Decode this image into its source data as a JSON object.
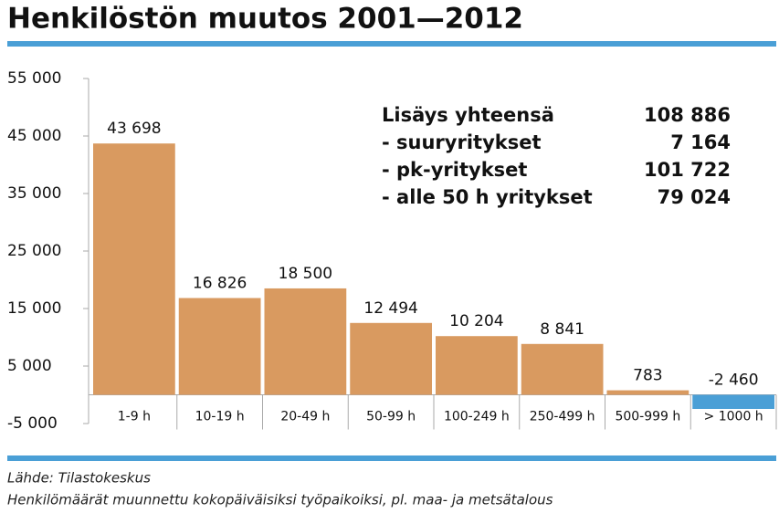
{
  "chart_data": {
    "type": "bar",
    "title": "Henkilöstön muutos 2001—2012",
    "categories": [
      "1-9 h",
      "10-19 h",
      "20-49 h",
      "50-99 h",
      "100-249 h",
      "250-499 h",
      "500-999 h",
      "> 1000 h"
    ],
    "values": [
      43698,
      16826,
      18500,
      12494,
      10204,
      8841,
      783,
      -2460
    ],
    "value_labels": [
      "43 698",
      "16 826",
      "18 500",
      "12 494",
      "10 204",
      "8 841",
      "783",
      "-2 460"
    ],
    "color": "#d99a60",
    "negative_color": "#4a9fd6",
    "ylim": [
      -5000,
      55000
    ],
    "yticks": [
      {
        "value": -5000,
        "label": "-5 000"
      },
      {
        "value": 5000,
        "label": "5 000"
      },
      {
        "value": 15000,
        "label": "15 000"
      },
      {
        "value": 25000,
        "label": "25 000"
      },
      {
        "value": 35000,
        "label": "35 000"
      },
      {
        "value": 45000,
        "label": "45 000"
      },
      {
        "value": 55000,
        "label": "55 000"
      }
    ],
    "grid": false,
    "annotations": [
      {
        "label": "Lisäys yhteensä",
        "value": "108 886"
      },
      {
        "label": "- suuryritykset",
        "value": "7 164"
      },
      {
        "label": "- pk-yritykset",
        "value": "101 722"
      },
      {
        "label": "- alle 50 h yritykset",
        "value": "79 024"
      }
    ],
    "source": "Lähde: Tilastokeskus",
    "note": "Henkilömäärät muunnettu kokopäiväisiksi työpaikoiksi, pl. maa- ja metsätalous"
  }
}
